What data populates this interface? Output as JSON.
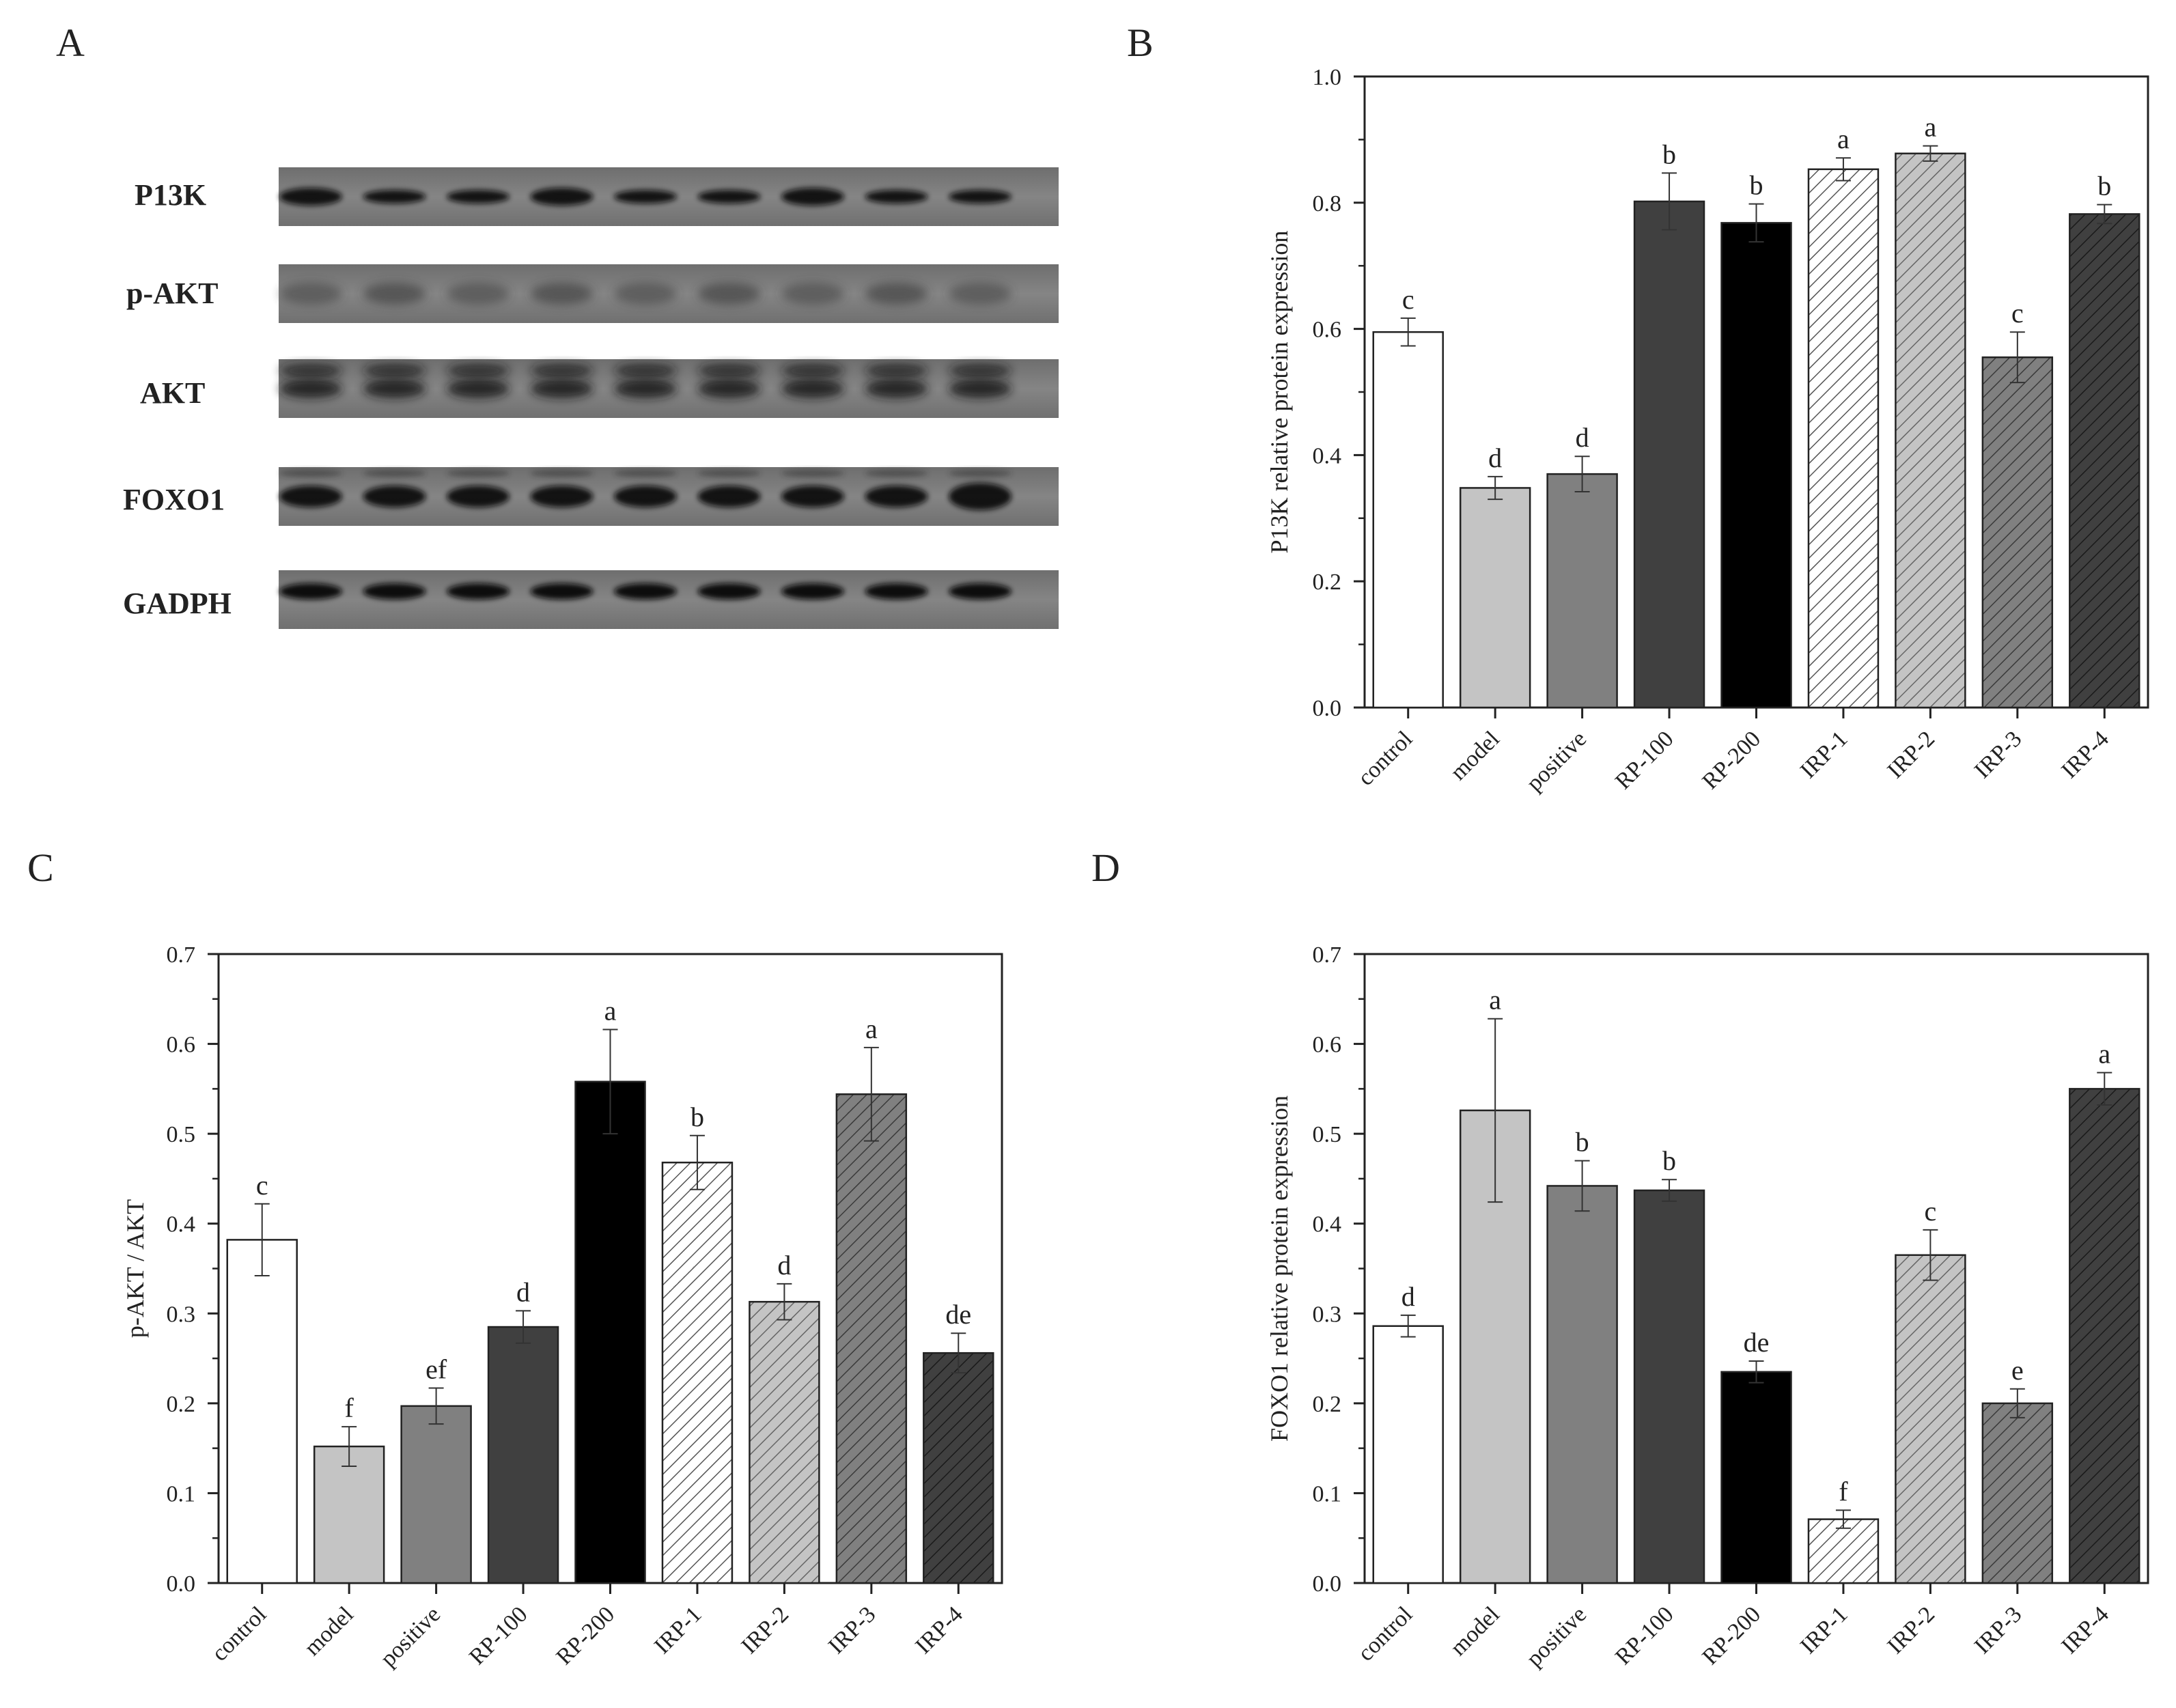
{
  "panels": {
    "A": {
      "letter": "A"
    },
    "B": {
      "letter": "B"
    },
    "C": {
      "letter": "C"
    },
    "D": {
      "letter": "D"
    }
  },
  "western_blot": {
    "proteins": [
      "P13K",
      "p-AKT",
      "AKT",
      "FOXO1",
      "GADPH"
    ],
    "lanes": 9
  },
  "chart_data": [
    {
      "panel": "B",
      "type": "bar",
      "title": "",
      "xlabel": "",
      "ylabel": "P13K relative protein expression",
      "ylim": [
        0,
        1.0
      ],
      "yticks": [
        "0.0",
        "0.2",
        "0.4",
        "0.6",
        "0.8",
        "1.0"
      ],
      "categories": [
        "control",
        "model",
        "positive",
        "RP-100",
        "RP-200",
        "IRP-1",
        "IRP-2",
        "IRP-3",
        "IRP-4"
      ],
      "values": [
        0.595,
        0.348,
        0.37,
        0.802,
        0.768,
        0.853,
        0.878,
        0.555,
        0.782
      ],
      "errors": [
        0.022,
        0.018,
        0.028,
        0.045,
        0.03,
        0.018,
        0.012,
        0.04,
        0.015
      ],
      "letters": [
        "c",
        "d",
        "d",
        "b",
        "b",
        "a",
        "a",
        "c",
        "b"
      ]
    },
    {
      "panel": "C",
      "type": "bar",
      "title": "",
      "xlabel": "",
      "ylabel": "p-AKT / AKT",
      "ylim": [
        0,
        0.7
      ],
      "yticks": [
        "0.0",
        "0.1",
        "0.2",
        "0.3",
        "0.4",
        "0.5",
        "0.6",
        "0.7"
      ],
      "categories": [
        "control",
        "model",
        "positive",
        "RP-100",
        "RP-200",
        "IRP-1",
        "IRP-2",
        "IRP-3",
        "IRP-4"
      ],
      "values": [
        0.382,
        0.152,
        0.197,
        0.285,
        0.558,
        0.468,
        0.313,
        0.544,
        0.256
      ],
      "errors": [
        0.04,
        0.022,
        0.02,
        0.018,
        0.058,
        0.03,
        0.02,
        0.052,
        0.022
      ],
      "letters": [
        "c",
        "f",
        "ef",
        "d",
        "a",
        "b",
        "d",
        "a",
        "de"
      ]
    },
    {
      "panel": "D",
      "type": "bar",
      "title": "",
      "xlabel": "",
      "ylabel": "FOXO1 relative protein expression",
      "ylim": [
        0,
        0.7
      ],
      "yticks": [
        "0.0",
        "0.1",
        "0.2",
        "0.3",
        "0.4",
        "0.5",
        "0.6",
        "0.7"
      ],
      "categories": [
        "control",
        "model",
        "positive",
        "RP-100",
        "RP-200",
        "IRP-1",
        "IRP-2",
        "IRP-3",
        "IRP-4"
      ],
      "values": [
        0.286,
        0.526,
        0.442,
        0.437,
        0.235,
        0.071,
        0.365,
        0.2,
        0.55
      ],
      "errors": [
        0.012,
        0.102,
        0.028,
        0.012,
        0.012,
        0.01,
        0.028,
        0.016,
        0.018
      ],
      "letters": [
        "d",
        "a",
        "b",
        "b",
        "de",
        "f",
        "c",
        "e",
        "a"
      ]
    }
  ],
  "bar_styles": [
    {
      "fill": "#ffffff",
      "hatch": false,
      "hatch_color": ""
    },
    {
      "fill": "#c4c4c4",
      "hatch": false,
      "hatch_color": ""
    },
    {
      "fill": "#808080",
      "hatch": false,
      "hatch_color": ""
    },
    {
      "fill": "#404040",
      "hatch": false,
      "hatch_color": ""
    },
    {
      "fill": "#000000",
      "hatch": false,
      "hatch_color": ""
    },
    {
      "fill": "#ffffff",
      "hatch": true,
      "hatch_color": "#555555"
    },
    {
      "fill": "#c4c4c4",
      "hatch": true,
      "hatch_color": "#666666"
    },
    {
      "fill": "#808080",
      "hatch": true,
      "hatch_color": "#3a3a3a"
    },
    {
      "fill": "#404040",
      "hatch": true,
      "hatch_color": "#1a1a1a"
    }
  ]
}
